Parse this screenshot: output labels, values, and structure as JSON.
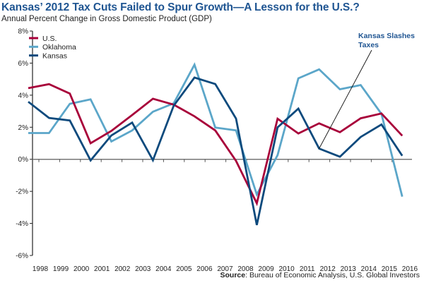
{
  "chart_data": {
    "type": "line",
    "title": "Kansas’ 2012 Tax Cuts Failed to Spur Growth—A Lesson for the U.S.?",
    "subtitle": "Annual Percent Change in Gross Domestic Product (GDP)",
    "xlabel": "",
    "ylabel": "",
    "ylim": [
      -6,
      8
    ],
    "yticks": [
      8,
      6,
      4,
      2,
      0,
      -2,
      -4,
      -6
    ],
    "ytick_labels": [
      "8%",
      "6%",
      "4%",
      "2%",
      "0%",
      "-2%",
      "-4%",
      "-6%"
    ],
    "categories": [
      "1998",
      "1999",
      "2000",
      "2001",
      "2002",
      "2003",
      "2004",
      "2005",
      "2006",
      "2007",
      "2008",
      "2009",
      "2010",
      "2011",
      "2012",
      "2013",
      "2014",
      "2015",
      "2016"
    ],
    "series": [
      {
        "name": "U.S.",
        "color": "#a8003a",
        "values": [
          4.44,
          4.69,
          4.1,
          1.0,
          1.77,
          2.76,
          3.78,
          3.41,
          2.68,
          1.8,
          -0.1,
          -2.74,
          2.53,
          1.61,
          2.24,
          1.69,
          2.56,
          2.86,
          1.47
        ]
      },
      {
        "name": "Oklahoma",
        "color": "#5ba6c9",
        "values": [
          1.64,
          1.64,
          3.46,
          3.74,
          1.11,
          1.8,
          2.97,
          3.49,
          5.9,
          1.98,
          1.8,
          -2.2,
          0.26,
          5.05,
          5.61,
          4.37,
          4.63,
          2.83,
          -2.33
        ]
      },
      {
        "name": "Kansas",
        "color": "#0d4a7d",
        "values": [
          3.59,
          2.58,
          2.42,
          -0.07,
          1.49,
          2.29,
          -0.06,
          3.34,
          5.1,
          4.7,
          2.54,
          -4.1,
          1.99,
          3.16,
          0.67,
          0.16,
          1.39,
          2.17,
          0.22
        ]
      }
    ],
    "legend": {
      "placement": "top-left",
      "entries": [
        "U.S.",
        "Oklahoma",
        "Kansas"
      ]
    },
    "annotation": {
      "lines": [
        "Kansas Slashes",
        "Taxes"
      ],
      "points_to_index": 14,
      "points_to_series": "Kansas"
    },
    "grid": false,
    "source_label": "Source",
    "source_text": ": Bureau of Economic Analysis, U.S. Global Investors"
  }
}
